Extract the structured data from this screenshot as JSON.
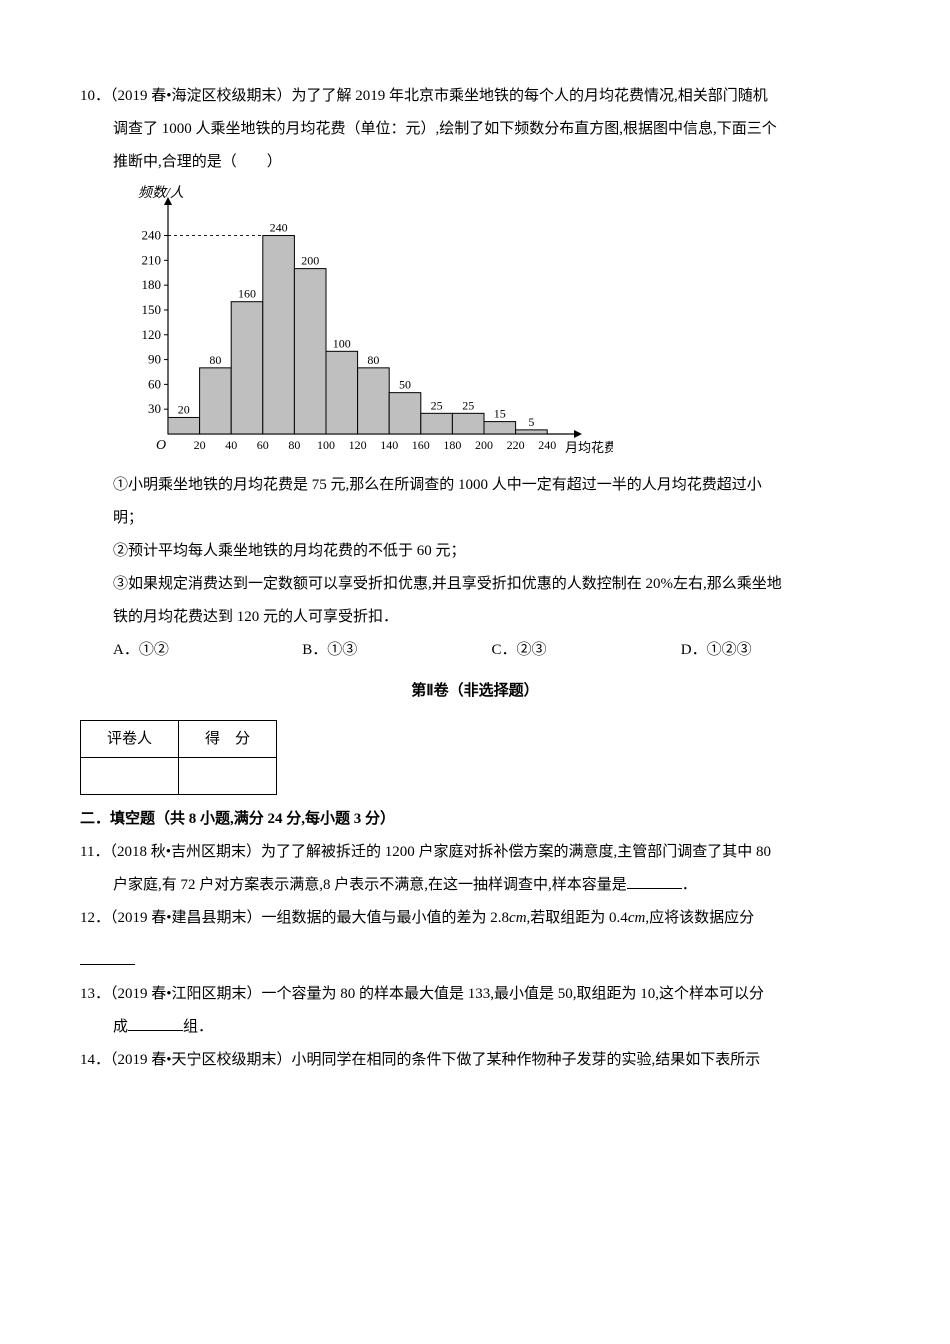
{
  "q10": {
    "number": "10．",
    "source": "（2019 春•海淀区校级期末）",
    "stem_a": "为了了解 2019 年北京市乘坐地铁的每个人的月均花费情况,相关部门随机",
    "stem_b": "调查了 1000 人乘坐地铁的月均花费（单位：元）,绘制了如下频数分布直方图,根据图中信息,下面三个",
    "stem_c": "推断中,合理的是（　　）",
    "chart": {
      "y_label": "频数/人",
      "x_label": "月均花费/元",
      "y_ticks": [
        30,
        60,
        90,
        120,
        150,
        180,
        210,
        240
      ],
      "x_ticks": [
        20,
        40,
        60,
        80,
        100,
        120,
        140,
        160,
        180,
        200,
        220,
        240
      ],
      "bars": [
        {
          "label": "20",
          "value": 20
        },
        {
          "label": "80",
          "value": 80
        },
        {
          "label": "160",
          "value": 160
        },
        {
          "label": "240",
          "value": 240
        },
        {
          "label": "200",
          "value": 200
        },
        {
          "label": "100",
          "value": 100
        },
        {
          "label": "80",
          "value": 80
        },
        {
          "label": "50",
          "value": 50
        },
        {
          "label": "25",
          "value": 25
        },
        {
          "label": "25",
          "value": 25
        },
        {
          "label": "15",
          "value": 15
        },
        {
          "label": "5",
          "value": 5
        }
      ],
      "bar_fill": "#bfbfbf",
      "bar_stroke": "#000000",
      "axis_color": "#000000",
      "background": "#ffffff"
    },
    "statements": {
      "s1a": "①小明乘坐地铁的月均花费是 75 元,那么在所调查的 1000 人中一定有超过一半的人月均花费超过小",
      "s1b": "明；",
      "s2": "②预计平均每人乘坐地铁的月均花费的不低于 60 元；",
      "s3a": "③如果规定消费达到一定数额可以享受折扣优惠,并且享受折扣优惠的人数控制在 20%左右,那么乘坐地",
      "s3b": "铁的月均花费达到 120 元的人可享受折扣．"
    },
    "options": {
      "A": "A．①②",
      "B": "B．①③",
      "C": "C．②③",
      "D": "D．①②③"
    }
  },
  "part2_title": "第Ⅱ卷（非选择题）",
  "score_table": {
    "c1": "评卷人",
    "c2": "得　分"
  },
  "section2": "二．填空题（共 8 小题,满分 24 分,每小题 3 分）",
  "q11": {
    "number": "11．",
    "source": "（2018 秋•吉州区期末）",
    "stem_a": "为了了解被拆迁的 1200 户家庭对拆补偿方案的满意度,主管部门调查了其中 80",
    "stem_b": "户家庭,有 72 户对方案表示满意,8 户表示不满意,在这一抽样调查中,样本容量是",
    "tail": "．"
  },
  "q12": {
    "number": "12．",
    "source": "（2019 春•建昌县期末）",
    "stem_a": "一组数据的最大值与最小值的差为 2.8",
    "unit_a": "cm",
    "stem_b": ",若取组距为 0.4",
    "unit_b": "cm",
    "stem_c": ",应将该数据应分"
  },
  "q13": {
    "number": "13．",
    "source": "（2019 春•江阳区期末）",
    "stem_a": "一个容量为 80 的样本最大值是 133,最小值是 50,取组距为 10,这个样本可以分",
    "stem_b": "成",
    "tail": "组．"
  },
  "q14": {
    "number": "14．",
    "source": "（2019 春•天宁区校级期末）",
    "stem": "小明同学在相同的条件下做了某种作物种子发芽的实验,结果如下表所示"
  }
}
